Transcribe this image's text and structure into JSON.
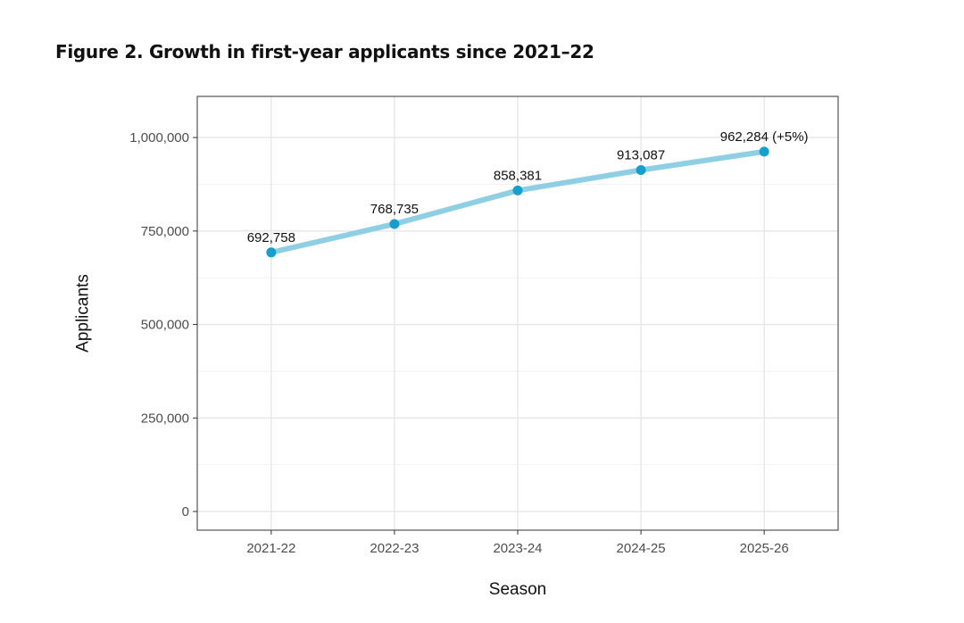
{
  "figure": {
    "title": "Figure 2. Growth in first-year applicants since 2021–22"
  },
  "colors": {
    "line": "#8ecfe3",
    "point": "#149fcc",
    "grid_major": "#e6e6e6",
    "grid_minor": "#f2f2f2",
    "panel_border": "#333333",
    "tick_text": "#4d4d4d"
  },
  "chart_data": {
    "type": "line",
    "title": "Figure 2. Growth in first-year applicants since 2021–22",
    "xlabel": "Season",
    "ylabel": "Applicants",
    "categories": [
      "2021-22",
      "2022-23",
      "2023-24",
      "2024-25",
      "2025-26"
    ],
    "series": [
      {
        "name": "Applicants",
        "values": [
          692758,
          768735,
          858381,
          913087,
          962284
        ]
      }
    ],
    "data_labels": [
      "692,758",
      "768,735",
      "858,381",
      "913,087",
      "962,284 (+5%)"
    ],
    "y_ticks": [
      0,
      250000,
      500000,
      750000,
      1000000
    ],
    "y_tick_labels": [
      "0",
      "250,000",
      "500,000",
      "750,000",
      "1,000,000"
    ],
    "ylim": [
      -50000,
      1110000
    ],
    "grid": true,
    "legend": "none"
  }
}
